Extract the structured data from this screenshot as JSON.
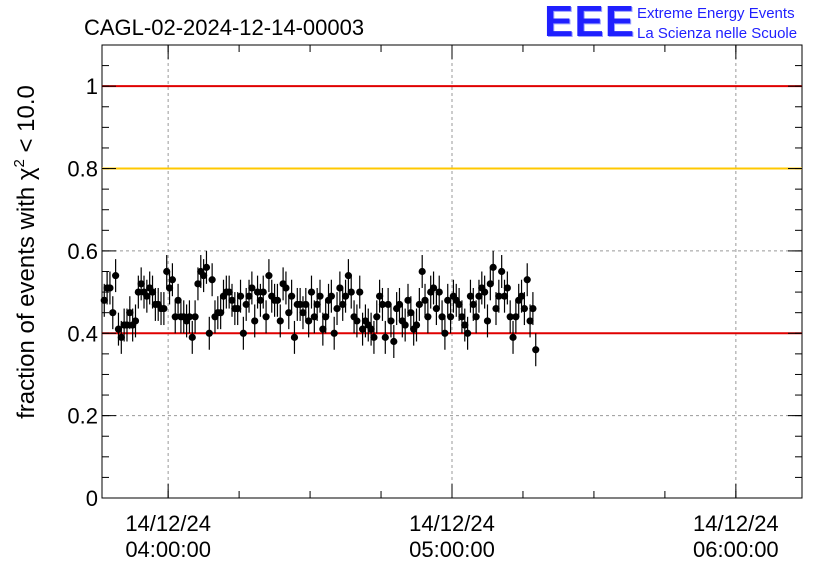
{
  "chart_data": {
    "type": "scatter",
    "title": "CAGL-02-2024-12-14-00003",
    "ylabel": "fraction of events with χ² < 10.0",
    "ylabel_prefix": "fraction of events with ",
    "ylabel_chi": "χ",
    "ylabel_sup": "2",
    "ylabel_suffix": " < 10.0",
    "xlabel": "",
    "ylim": [
      0,
      1.1
    ],
    "xlim_minutes": [
      3.767,
      6.233
    ],
    "x_unit": "hours after 14/12/24 00:00:00",
    "grid": true,
    "yticks": [
      {
        "value": 0,
        "label": "0"
      },
      {
        "value": 0.2,
        "label": "0.2"
      },
      {
        "value": 0.4,
        "label": "0.4"
      },
      {
        "value": 0.6,
        "label": "0.6"
      },
      {
        "value": 0.8,
        "label": "0.8"
      },
      {
        "value": 1,
        "label": "1"
      }
    ],
    "xticks": [
      {
        "value": 4,
        "date": "14/12/24",
        "time": "04:00:00"
      },
      {
        "value": 5,
        "date": "14/12/24",
        "time": "05:00:00"
      },
      {
        "value": 6,
        "date": "14/12/24",
        "time": "06:00:00"
      }
    ],
    "reference_lines": [
      {
        "value": 1.0,
        "color": "#e00000"
      },
      {
        "value": 0.8,
        "color": "#ffc800"
      },
      {
        "value": 0.4,
        "color": "#e00000"
      }
    ],
    "error": 0.04,
    "series": [
      {
        "color": "#000000",
        "x_start": 3.775,
        "x_step": 0.01,
        "values": [
          0.48,
          0.51,
          0.51,
          0.45,
          0.54,
          0.41,
          0.39,
          0.42,
          0.42,
          0.45,
          0.42,
          0.43,
          0.5,
          0.52,
          0.5,
          0.49,
          0.51,
          0.5,
          0.47,
          0.47,
          0.46,
          0.46,
          0.55,
          0.51,
          0.53,
          0.44,
          0.48,
          0.44,
          0.44,
          0.43,
          0.44,
          0.39,
          0.44,
          0.52,
          0.55,
          0.54,
          0.56,
          0.4,
          0.53,
          0.44,
          0.45,
          0.45,
          0.49,
          0.5,
          0.5,
          0.48,
          0.46,
          0.46,
          0.49,
          0.4,
          0.47,
          0.49,
          0.51,
          0.43,
          0.5,
          0.48,
          0.5,
          0.44,
          0.54,
          0.49,
          0.48,
          0.48,
          0.43,
          0.52,
          0.51,
          0.45,
          0.49,
          0.39,
          0.47,
          0.47,
          0.45,
          0.47,
          0.43,
          0.5,
          0.44,
          0.47,
          0.49,
          0.41,
          0.44,
          0.48,
          0.49,
          0.4,
          0.46,
          0.51,
          0.47,
          0.49,
          0.54,
          0.5,
          0.44,
          0.43,
          0.5,
          0.41,
          0.43,
          0.42,
          0.41,
          0.39,
          0.44,
          0.49,
          0.47,
          0.39,
          0.47,
          0.43,
          0.38,
          0.46,
          0.47,
          0.43,
          0.42,
          0.48,
          0.45,
          0.41,
          0.42,
          0.47,
          0.55,
          0.48,
          0.44,
          0.5,
          0.51,
          0.46,
          0.5,
          0.44,
          0.4,
          0.48,
          0.44,
          0.49,
          0.48,
          0.47,
          0.44,
          0.42,
          0.4,
          0.49,
          0.47,
          0.44,
          0.49,
          0.51,
          0.5,
          0.43,
          0.52,
          0.56,
          0.46,
          0.49,
          0.55,
          0.49,
          0.51,
          0.44,
          0.39,
          0.44,
          0.48,
          0.49,
          0.46,
          0.53,
          0.43,
          0.46,
          0.36
        ]
      }
    ]
  },
  "logo": {
    "mark": "EEE",
    "line1": "Extreme Energy Events",
    "line2": "La Scienza nelle Scuole"
  }
}
